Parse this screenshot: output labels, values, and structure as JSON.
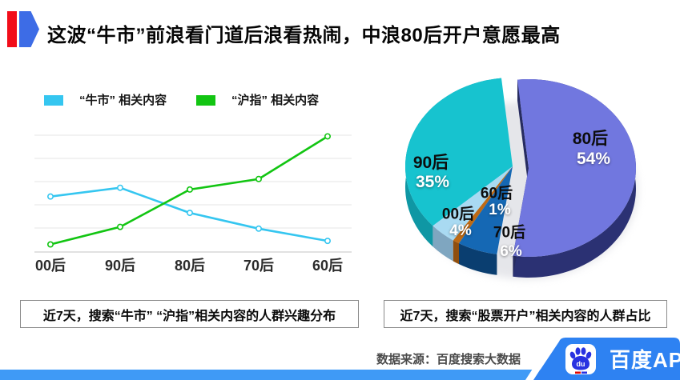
{
  "header": {
    "title": "这波“牛市”前浪看门道后浪看热闹，中浪80后开户意愿最高",
    "accent_red": "#F20D1A",
    "accent_blue": "#3D6CE6"
  },
  "chart_data": [
    {
      "type": "line",
      "categories": [
        "00后",
        "90后",
        "80后",
        "70后",
        "60后"
      ],
      "series": [
        {
          "name": "“牛市” 相关内容",
          "color": "#35C6F0",
          "values": [
            47.5,
            55,
            33.5,
            20,
            9.5
          ]
        },
        {
          "name": "“沪指” 相关内容",
          "color": "#12C512",
          "values": [
            6.5,
            21.5,
            53.5,
            62.5,
            99
          ]
        }
      ],
      "ylim": [
        0,
        100
      ],
      "grid": true,
      "legend_position": "top",
      "caption": "近7天，搜索“牛市” “沪指”相关内容的人群兴趣分布"
    },
    {
      "type": "pie",
      "start_angle_deg": -6,
      "slices": [
        {
          "label": "80后",
          "pct": 54,
          "pct_label": "54%",
          "color": "#7177DF",
          "wall": "#2B3173",
          "exploded": true
        },
        {
          "label": "70后",
          "pct": 6,
          "pct_label": "6%",
          "color": "#1568B4",
          "wall": "#0A3E70"
        },
        {
          "label": "60后",
          "pct": 1,
          "pct_label": "1%",
          "color": "#BE6A14",
          "wall": "#8F4E0E"
        },
        {
          "label": "00后",
          "pct": 4,
          "pct_label": "4%",
          "color": "#A9DAF2",
          "wall": "#7FA6C0"
        },
        {
          "label": "90后",
          "pct": 35,
          "pct_label": "35%",
          "color": "#17C3CF",
          "wall": "#0F97A4"
        }
      ],
      "caption": "近7天，搜索“股票开户”相关内容的人群占比"
    }
  ],
  "footer": {
    "source": "数据来源：百度搜索大数据",
    "brand": "百度APP",
    "brand_logo_icon": "baidu-paw-icon",
    "banner_color": "#2E82F2",
    "strip_color": "#3F9AF6",
    "paw_blue": "#2932E1",
    "paw_red": "#E10600"
  }
}
